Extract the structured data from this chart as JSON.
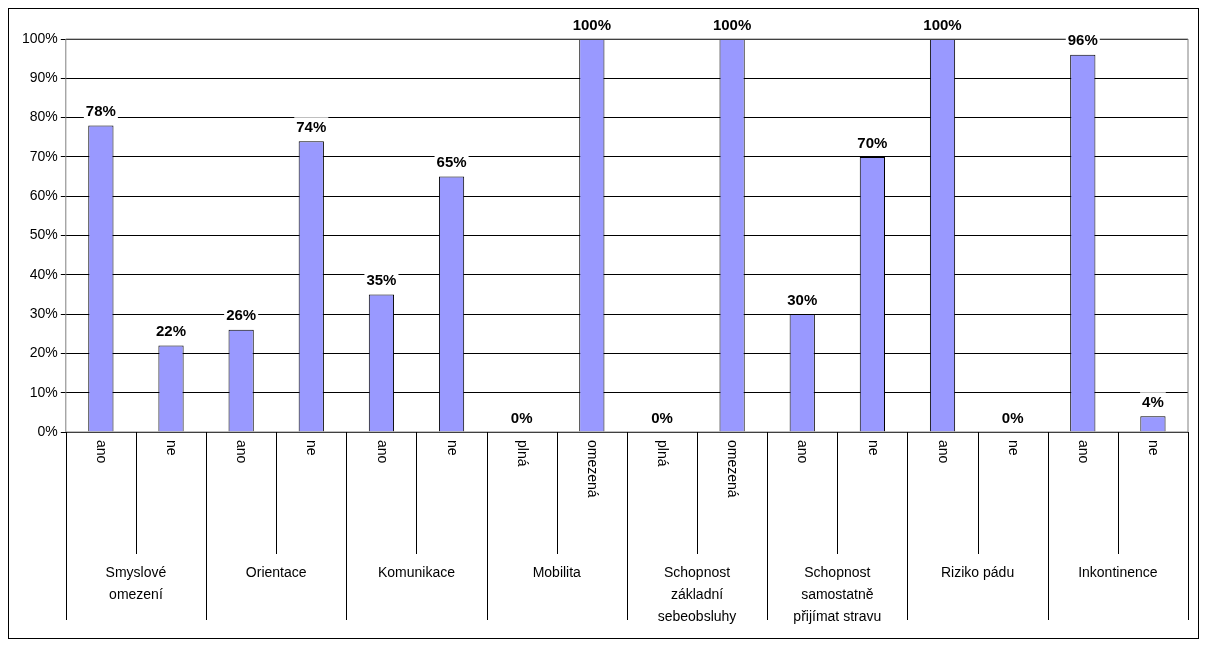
{
  "chart_data": {
    "type": "bar",
    "categories": [
      "ano",
      "ne",
      "ano",
      "ne",
      "ano",
      "ne",
      "plná",
      "omezená",
      "plná",
      "omezená",
      "ano",
      "ne",
      "ano",
      "ne",
      "ano",
      "ne"
    ],
    "values": [
      78,
      22,
      26,
      74,
      35,
      65,
      0,
      100,
      0,
      100,
      30,
      70,
      100,
      0,
      96,
      4
    ],
    "value_labels": [
      "78%",
      "22%",
      "26%",
      "74%",
      "35%",
      "65%",
      "0%",
      "100%",
      "0%",
      "100%",
      "30%",
      "70%",
      "100%",
      "0%",
      "96%",
      "4%"
    ],
    "color": "#9999ff",
    "annotations": [
      "Smyslové omezení",
      "Orientace",
      "Komunikace",
      "Mobilita",
      "Schopnost základní sebeobsluhy",
      "Schopnost samostatně přijímat stravu",
      "Riziko pádu",
      "Inkontinence"
    ],
    "ylim": [
      0,
      100
    ],
    "yticks": [
      {
        "value": 0,
        "label": "0%"
      },
      {
        "value": 10,
        "label": "10%"
      },
      {
        "value": 20,
        "label": "20%"
      },
      {
        "value": 30,
        "label": "30%"
      },
      {
        "value": 40,
        "label": "40%"
      },
      {
        "value": 50,
        "label": "50%"
      },
      {
        "value": 60,
        "label": "60%"
      },
      {
        "value": 70,
        "label": "70%"
      },
      {
        "value": 80,
        "label": "80%"
      },
      {
        "value": 90,
        "label": "90%"
      },
      {
        "value": 100,
        "label": "100%"
      }
    ],
    "grid": "y",
    "legend": false
  }
}
